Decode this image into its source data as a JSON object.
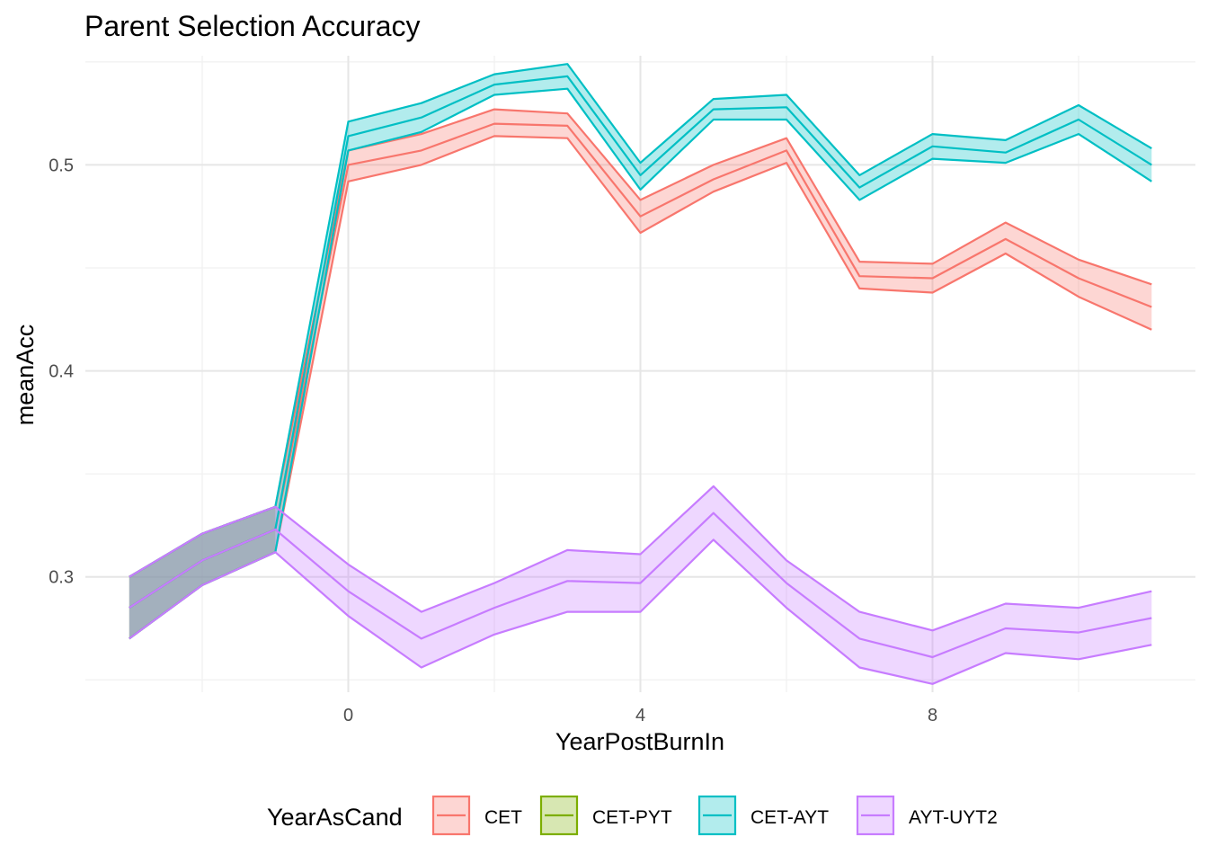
{
  "chart_data": {
    "type": "line",
    "title": "Parent Selection Accuracy",
    "xlabel": "YearPostBurnIn",
    "ylabel": "meanAcc",
    "xlim": [
      -3.6,
      11.6
    ],
    "ylim": [
      0.244,
      0.553
    ],
    "x_ticks": [
      0,
      4,
      8
    ],
    "y_ticks": [
      0.3,
      0.4,
      0.5
    ],
    "x_tick_labels": [
      "0",
      "4",
      "8"
    ],
    "y_tick_labels": [
      "0.3",
      "0.4",
      "0.5"
    ],
    "grid": true,
    "ribbons": true,
    "legend": {
      "title": "YearAsCand",
      "position": "bottom"
    },
    "series": [
      {
        "name": "CET",
        "color": "#F8766D",
        "x": [
          -3,
          -2,
          -1,
          0,
          1,
          2,
          3,
          4,
          5,
          6,
          7,
          8,
          9,
          10,
          11
        ],
        "mean": [
          0.285,
          0.308,
          0.323,
          0.5,
          0.507,
          0.52,
          0.519,
          0.475,
          0.493,
          0.507,
          0.446,
          0.445,
          0.464,
          0.445,
          0.431
        ],
        "upper": [
          0.3,
          0.321,
          0.334,
          0.507,
          0.515,
          0.527,
          0.525,
          0.483,
          0.5,
          0.513,
          0.453,
          0.452,
          0.472,
          0.454,
          0.442
        ],
        "lower": [
          0.27,
          0.296,
          0.312,
          0.492,
          0.5,
          0.514,
          0.513,
          0.467,
          0.487,
          0.501,
          0.44,
          0.438,
          0.457,
          0.436,
          0.42
        ]
      },
      {
        "name": "CET-PYT",
        "color": "#7CAE00",
        "x": [
          -3,
          -2,
          -1
        ],
        "mean": [
          0.285,
          0.308,
          0.323
        ],
        "upper": [
          0.3,
          0.321,
          0.334
        ],
        "lower": [
          0.27,
          0.296,
          0.312
        ]
      },
      {
        "name": "CET-AYT",
        "color": "#00BFC4",
        "x": [
          -3,
          -2,
          -1,
          0,
          1,
          2,
          3,
          4,
          5,
          6,
          7,
          8,
          9,
          10,
          11
        ],
        "mean": [
          0.285,
          0.308,
          0.323,
          0.514,
          0.523,
          0.539,
          0.543,
          0.495,
          0.527,
          0.528,
          0.489,
          0.509,
          0.506,
          0.522,
          0.5
        ],
        "upper": [
          0.3,
          0.321,
          0.334,
          0.521,
          0.53,
          0.544,
          0.549,
          0.501,
          0.532,
          0.534,
          0.495,
          0.515,
          0.512,
          0.529,
          0.508
        ],
        "lower": [
          0.27,
          0.296,
          0.312,
          0.507,
          0.516,
          0.534,
          0.537,
          0.488,
          0.522,
          0.522,
          0.483,
          0.503,
          0.501,
          0.515,
          0.492
        ]
      },
      {
        "name": "AYT-UYT2",
        "color": "#C77CFF",
        "x": [
          -3,
          -2,
          -1,
          0,
          1,
          2,
          3,
          4,
          5,
          6,
          7,
          8,
          9,
          10,
          11
        ],
        "mean": [
          0.285,
          0.308,
          0.323,
          0.293,
          0.27,
          0.285,
          0.298,
          0.297,
          0.331,
          0.297,
          0.27,
          0.261,
          0.275,
          0.273,
          0.28
        ],
        "upper": [
          0.3,
          0.321,
          0.334,
          0.306,
          0.283,
          0.297,
          0.313,
          0.311,
          0.344,
          0.308,
          0.283,
          0.274,
          0.287,
          0.285,
          0.293
        ],
        "lower": [
          0.27,
          0.296,
          0.312,
          0.281,
          0.256,
          0.272,
          0.283,
          0.283,
          0.318,
          0.285,
          0.256,
          0.248,
          0.263,
          0.26,
          0.267
        ]
      }
    ]
  }
}
